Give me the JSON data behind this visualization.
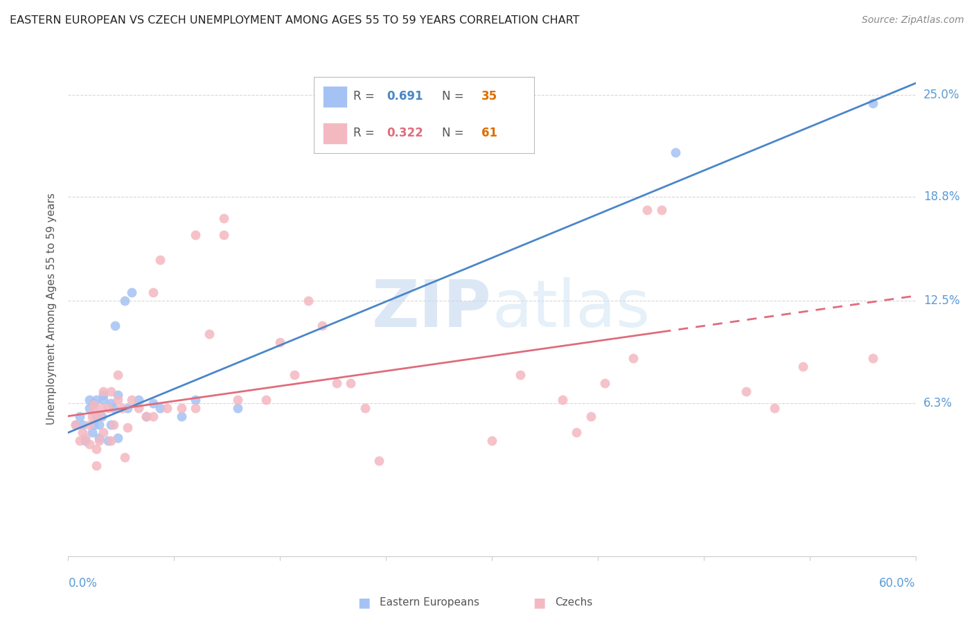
{
  "title": "EASTERN EUROPEAN VS CZECH UNEMPLOYMENT AMONG AGES 55 TO 59 YEARS CORRELATION CHART",
  "source": "Source: ZipAtlas.com",
  "ylabel": "Unemployment Among Ages 55 to 59 years",
  "xlim": [
    0.0,
    0.6
  ],
  "ylim": [
    -0.03,
    0.27
  ],
  "watermark_zip": "ZIP",
  "watermark_atlas": "atlas",
  "legend1_label": "Eastern Europeans",
  "legend2_label": "Czechs",
  "R1": 0.691,
  "N1": 35,
  "R2": 0.322,
  "N2": 61,
  "color_blue": "#a4c2f4",
  "color_pink": "#f4b8c1",
  "blue_line_color": "#4a86c8",
  "pink_line_color": "#e06c7c",
  "R_color": "#4a86c8",
  "N_color": "#e06c00",
  "ytick_vals": [
    0.0,
    0.063,
    0.125,
    0.188,
    0.25
  ],
  "ytick_labels": [
    "",
    "6.3%",
    "12.5%",
    "18.8%",
    "25.0%"
  ],
  "eastern_european_x": [
    0.005,
    0.008,
    0.01,
    0.012,
    0.015,
    0.015,
    0.017,
    0.018,
    0.018,
    0.02,
    0.02,
    0.022,
    0.022,
    0.024,
    0.025,
    0.025,
    0.028,
    0.03,
    0.03,
    0.032,
    0.033,
    0.035,
    0.035,
    0.04,
    0.042,
    0.045,
    0.05,
    0.055,
    0.06,
    0.065,
    0.08,
    0.09,
    0.12,
    0.43,
    0.57
  ],
  "eastern_european_y": [
    0.05,
    0.055,
    0.05,
    0.04,
    0.06,
    0.065,
    0.045,
    0.05,
    0.063,
    0.055,
    0.065,
    0.042,
    0.05,
    0.055,
    0.065,
    0.068,
    0.04,
    0.05,
    0.063,
    0.06,
    0.11,
    0.042,
    0.068,
    0.125,
    0.06,
    0.13,
    0.065,
    0.055,
    0.063,
    0.06,
    0.055,
    0.065,
    0.06,
    0.215,
    0.245
  ],
  "czech_x": [
    0.005,
    0.008,
    0.01,
    0.012,
    0.015,
    0.015,
    0.017,
    0.018,
    0.018,
    0.02,
    0.02,
    0.022,
    0.022,
    0.024,
    0.025,
    0.025,
    0.028,
    0.03,
    0.03,
    0.032,
    0.035,
    0.035,
    0.038,
    0.04,
    0.042,
    0.045,
    0.05,
    0.055,
    0.06,
    0.06,
    0.065,
    0.07,
    0.08,
    0.09,
    0.09,
    0.1,
    0.11,
    0.11,
    0.12,
    0.14,
    0.15,
    0.16,
    0.17,
    0.18,
    0.19,
    0.2,
    0.21,
    0.22,
    0.3,
    0.32,
    0.35,
    0.36,
    0.37,
    0.38,
    0.4,
    0.41,
    0.42,
    0.48,
    0.5,
    0.52,
    0.57
  ],
  "czech_y": [
    0.05,
    0.04,
    0.045,
    0.042,
    0.038,
    0.05,
    0.055,
    0.058,
    0.062,
    0.025,
    0.035,
    0.04,
    0.055,
    0.06,
    0.045,
    0.07,
    0.06,
    0.04,
    0.07,
    0.05,
    0.065,
    0.08,
    0.06,
    0.03,
    0.048,
    0.065,
    0.06,
    0.055,
    0.055,
    0.13,
    0.15,
    0.06,
    0.06,
    0.06,
    0.165,
    0.105,
    0.165,
    0.175,
    0.065,
    0.065,
    0.1,
    0.08,
    0.125,
    0.11,
    0.075,
    0.075,
    0.06,
    0.028,
    0.04,
    0.08,
    0.065,
    0.045,
    0.055,
    0.075,
    0.09,
    0.18,
    0.18,
    0.07,
    0.06,
    0.085,
    0.09
  ],
  "background_color": "#ffffff",
  "grid_color": "#d8d8d8"
}
